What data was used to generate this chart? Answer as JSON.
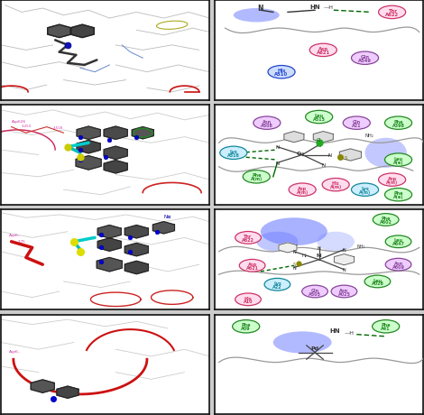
{
  "figure_bg": "#cccccc",
  "panel_bg": "#ffffff",
  "colors": {
    "dark_atom": "#444444",
    "blue_atom": "#0000dd",
    "yellow_atom": "#cccc00",
    "cyan_atom": "#00cccc",
    "red_curve": "#cc2222",
    "pink_residue_border": "#cc3366",
    "pink_residue_bg": "#ffddee",
    "green_residue_border": "#228822",
    "green_residue_bg": "#ccffcc",
    "blue_residue_border": "#2244cc",
    "blue_residue_bg": "#ccddff",
    "purple_residue_border": "#884499",
    "purple_residue_bg": "#eeccff",
    "teal_residue_border": "#118899",
    "teal_residue_bg": "#cceeff",
    "gray_backbone": "#aaaaaa",
    "green_bond": "#006600",
    "blob_blue": "#5566ff"
  }
}
